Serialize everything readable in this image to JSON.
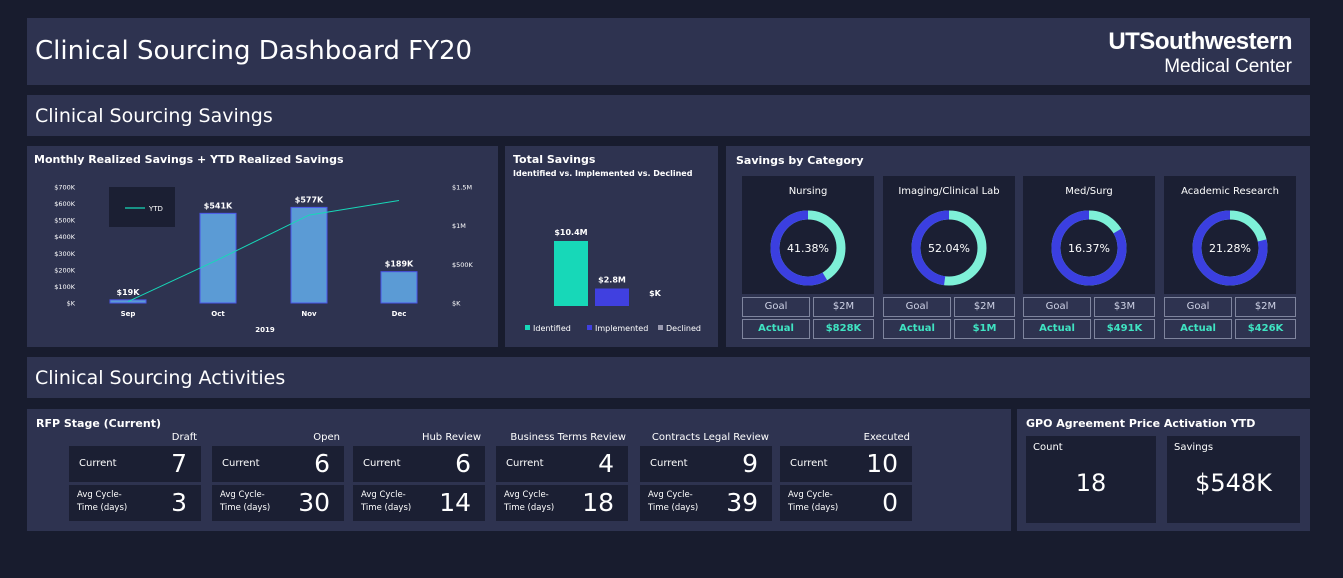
{
  "header": {
    "title": "Clinical Sourcing Dashboard FY20",
    "logo_line1": "UTSouthwestern",
    "logo_line2": "Medical Center"
  },
  "sections": {
    "savings": "Clinical Sourcing Savings",
    "activities": "Clinical Sourcing Activities"
  },
  "monthly_chart": {
    "title": "Monthly Realized Savings + YTD Realized Savings",
    "legend_label": "YTD",
    "year_label": "2019",
    "left_ticks": [
      "$700K",
      "$600K",
      "$500K",
      "$400K",
      "$300K",
      "$200K",
      "$100K",
      "$K"
    ],
    "right_ticks": [
      "$1.5M",
      "$1M",
      "$500K",
      "$K"
    ],
    "bar_labels": [
      "$19K",
      "$541K",
      "$577K",
      "$189K"
    ]
  },
  "total_savings": {
    "title": "Total Savings",
    "subtitle": "Identified vs. Implemented vs. Declined",
    "bar_labels": [
      "$10.4M",
      "$2.8M",
      "$K"
    ],
    "legend": [
      "Identified",
      "Implemented",
      "Declined"
    ]
  },
  "category": {
    "title": "Savings by Category",
    "goal_label": "Goal",
    "actual_label": "Actual",
    "items": [
      {
        "name": "Nursing",
        "pct_label": "41.38%",
        "pct": 41.38,
        "goal": "$2M",
        "actual": "$828K"
      },
      {
        "name": "Imaging/Clinical Lab",
        "pct_label": "52.04%",
        "pct": 52.04,
        "goal": "$2M",
        "actual": "$1M"
      },
      {
        "name": "Med/Surg",
        "pct_label": "16.37%",
        "pct": 16.37,
        "goal": "$3M",
        "actual": "$491K"
      },
      {
        "name": "Academic Research",
        "pct_label": "21.28%",
        "pct": 21.28,
        "goal": "$2M",
        "actual": "$426K"
      }
    ]
  },
  "rfp": {
    "title": "RFP Stage (Current)",
    "current_label": "Current",
    "cycle_label_1": "Avg Cycle-",
    "cycle_label_2": "Time (days)",
    "stages": [
      {
        "name": "Draft",
        "current": "7",
        "cycle": "3"
      },
      {
        "name": "Open",
        "current": "6",
        "cycle": "30"
      },
      {
        "name": "Hub Review",
        "current": "6",
        "cycle": "14"
      },
      {
        "name": "Business Terms Review",
        "current": "4",
        "cycle": "18"
      },
      {
        "name": "Contracts Legal Review",
        "current": "9",
        "cycle": "39"
      },
      {
        "name": "Executed",
        "current": "10",
        "cycle": "0"
      }
    ]
  },
  "gpo": {
    "title": "GPO Agreement Price Activation YTD",
    "count_label": "Count",
    "count_value": "18",
    "savings_label": "Savings",
    "savings_value": "$548K"
  },
  "chart_data": [
    {
      "type": "bar",
      "title": "Monthly Realized Savings + YTD Realized Savings",
      "categories": [
        "Sep",
        "Oct",
        "Nov",
        "Dec"
      ],
      "xlabel": "2019",
      "series": [
        {
          "values": [
            19,
            541,
            577,
            189
          ]
        },
        {
          "name": "YTD",
          "type": "line",
          "axis": "right",
          "values": [
            19,
            560,
            1137,
            1326
          ]
        }
      ],
      "ylim": [
        0,
        700
      ],
      "ylim_right": [
        0,
        1500
      ]
    },
    {
      "type": "bar",
      "title": "Total Savings",
      "categories": [
        "Identified",
        "Implemented",
        "Declined"
      ],
      "values": [
        10.4,
        2.8,
        0
      ]
    }
  ],
  "colors": {
    "bar_blue": "#5b9bd5",
    "teal": "#17d8b8",
    "implemented": "#4040e0",
    "donut_blue": "#3b3fe0",
    "donut_teal": "#7ef0d8"
  }
}
